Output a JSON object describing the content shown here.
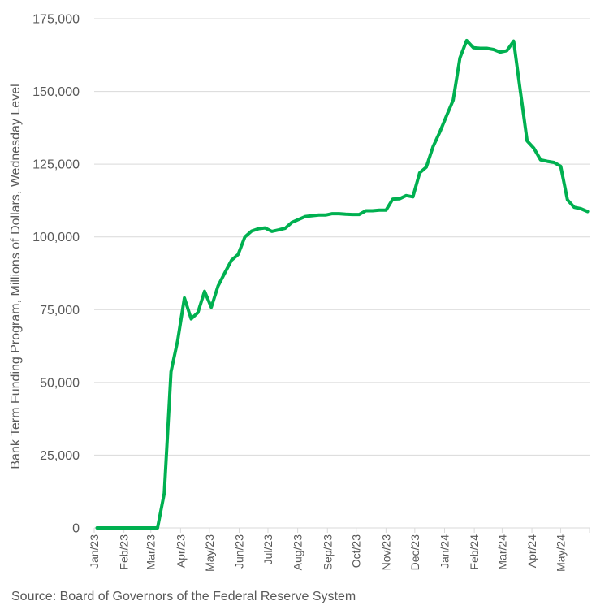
{
  "chart_data": {
    "type": "line",
    "title": "",
    "ylabel": "Bank Term Funding Program, Millions of Dollars, Wednesday Level",
    "xlabel": "",
    "ylim": [
      0,
      175000
    ],
    "yticks": [
      0,
      25000,
      50000,
      75000,
      100000,
      125000,
      150000,
      175000
    ],
    "ytick_labels": [
      "0",
      "25,000",
      "50,000",
      "75,000",
      "100,000",
      "125,000",
      "150,000",
      "175,000"
    ],
    "xticks": [
      "2023-01-01",
      "2023-02-01",
      "2023-03-01",
      "2023-04-01",
      "2023-05-01",
      "2023-06-01",
      "2023-07-01",
      "2023-08-01",
      "2023-09-01",
      "2023-10-01",
      "2023-11-01",
      "2023-12-01",
      "2024-01-01",
      "2024-02-01",
      "2024-03-01",
      "2024-04-01",
      "2024-05-01"
    ],
    "xtick_labels": [
      "Jan/23",
      "Feb/23",
      "Mar/23",
      "Apr/23",
      "May/23",
      "Jun/23",
      "Jul/23",
      "Aug/23",
      "Sep/23",
      "Oct/23",
      "Nov/23",
      "Dec/23",
      "Jan/24",
      "Feb/24",
      "Mar/24",
      "Apr/24",
      "May/24"
    ],
    "x_end": "2024-05-31",
    "grid": true,
    "legend": "none",
    "colors": {
      "line": "#00B050",
      "grid": "#D9D9D9",
      "text": "#595959"
    },
    "series": [
      {
        "x": [
          "2023-01-04",
          "2023-01-11",
          "2023-01-18",
          "2023-01-25",
          "2023-02-01",
          "2023-02-08",
          "2023-02-15",
          "2023-02-22",
          "2023-03-01",
          "2023-03-08",
          "2023-03-15",
          "2023-03-22",
          "2023-03-29",
          "2023-04-05",
          "2023-04-12",
          "2023-04-19",
          "2023-04-26",
          "2023-05-03",
          "2023-05-10",
          "2023-05-17",
          "2023-05-24",
          "2023-05-31",
          "2023-06-07",
          "2023-06-14",
          "2023-06-21",
          "2023-06-28",
          "2023-07-05",
          "2023-07-12",
          "2023-07-19",
          "2023-07-26",
          "2023-08-02",
          "2023-08-09",
          "2023-08-16",
          "2023-08-23",
          "2023-08-30",
          "2023-09-06",
          "2023-09-13",
          "2023-09-20",
          "2023-09-27",
          "2023-10-04",
          "2023-10-11",
          "2023-10-18",
          "2023-10-25",
          "2023-11-01",
          "2023-11-08",
          "2023-11-15",
          "2023-11-22",
          "2023-11-29",
          "2023-12-06",
          "2023-12-13",
          "2023-12-20",
          "2023-12-27",
          "2024-01-03",
          "2024-01-10",
          "2024-01-17",
          "2024-01-24",
          "2024-01-31",
          "2024-02-07",
          "2024-02-14",
          "2024-02-21",
          "2024-02-28",
          "2024-03-06",
          "2024-03-13",
          "2024-03-20",
          "2024-03-27",
          "2024-04-03",
          "2024-04-10",
          "2024-04-17",
          "2024-04-24",
          "2024-05-01",
          "2024-05-08",
          "2024-05-15",
          "2024-05-22",
          "2024-05-29"
        ],
        "values": [
          0,
          0,
          0,
          0,
          0,
          0,
          0,
          0,
          0,
          0,
          11943,
          53669,
          64403,
          79020,
          71838,
          73981,
          81297,
          75844,
          83125,
          87600,
          92000,
          94000,
          100000,
          102000,
          102800,
          103100,
          101900,
          102400,
          103000,
          105000,
          106000,
          107000,
          107300,
          107500,
          107500,
          108000,
          108000,
          107800,
          107700,
          107700,
          109000,
          109000,
          109200,
          109200,
          113000,
          113100,
          114200,
          113800,
          122000,
          124000,
          131000,
          136000,
          141600,
          147000,
          161500,
          167500,
          165000,
          164800,
          164800,
          164400,
          163500,
          164000,
          167300,
          150000,
          133000,
          130500,
          126500,
          126000,
          125600,
          124300,
          112800,
          110200,
          109700,
          108700
        ]
      }
    ]
  },
  "footer": {
    "source": "Source: Board of Governors of the Federal Reserve System"
  }
}
